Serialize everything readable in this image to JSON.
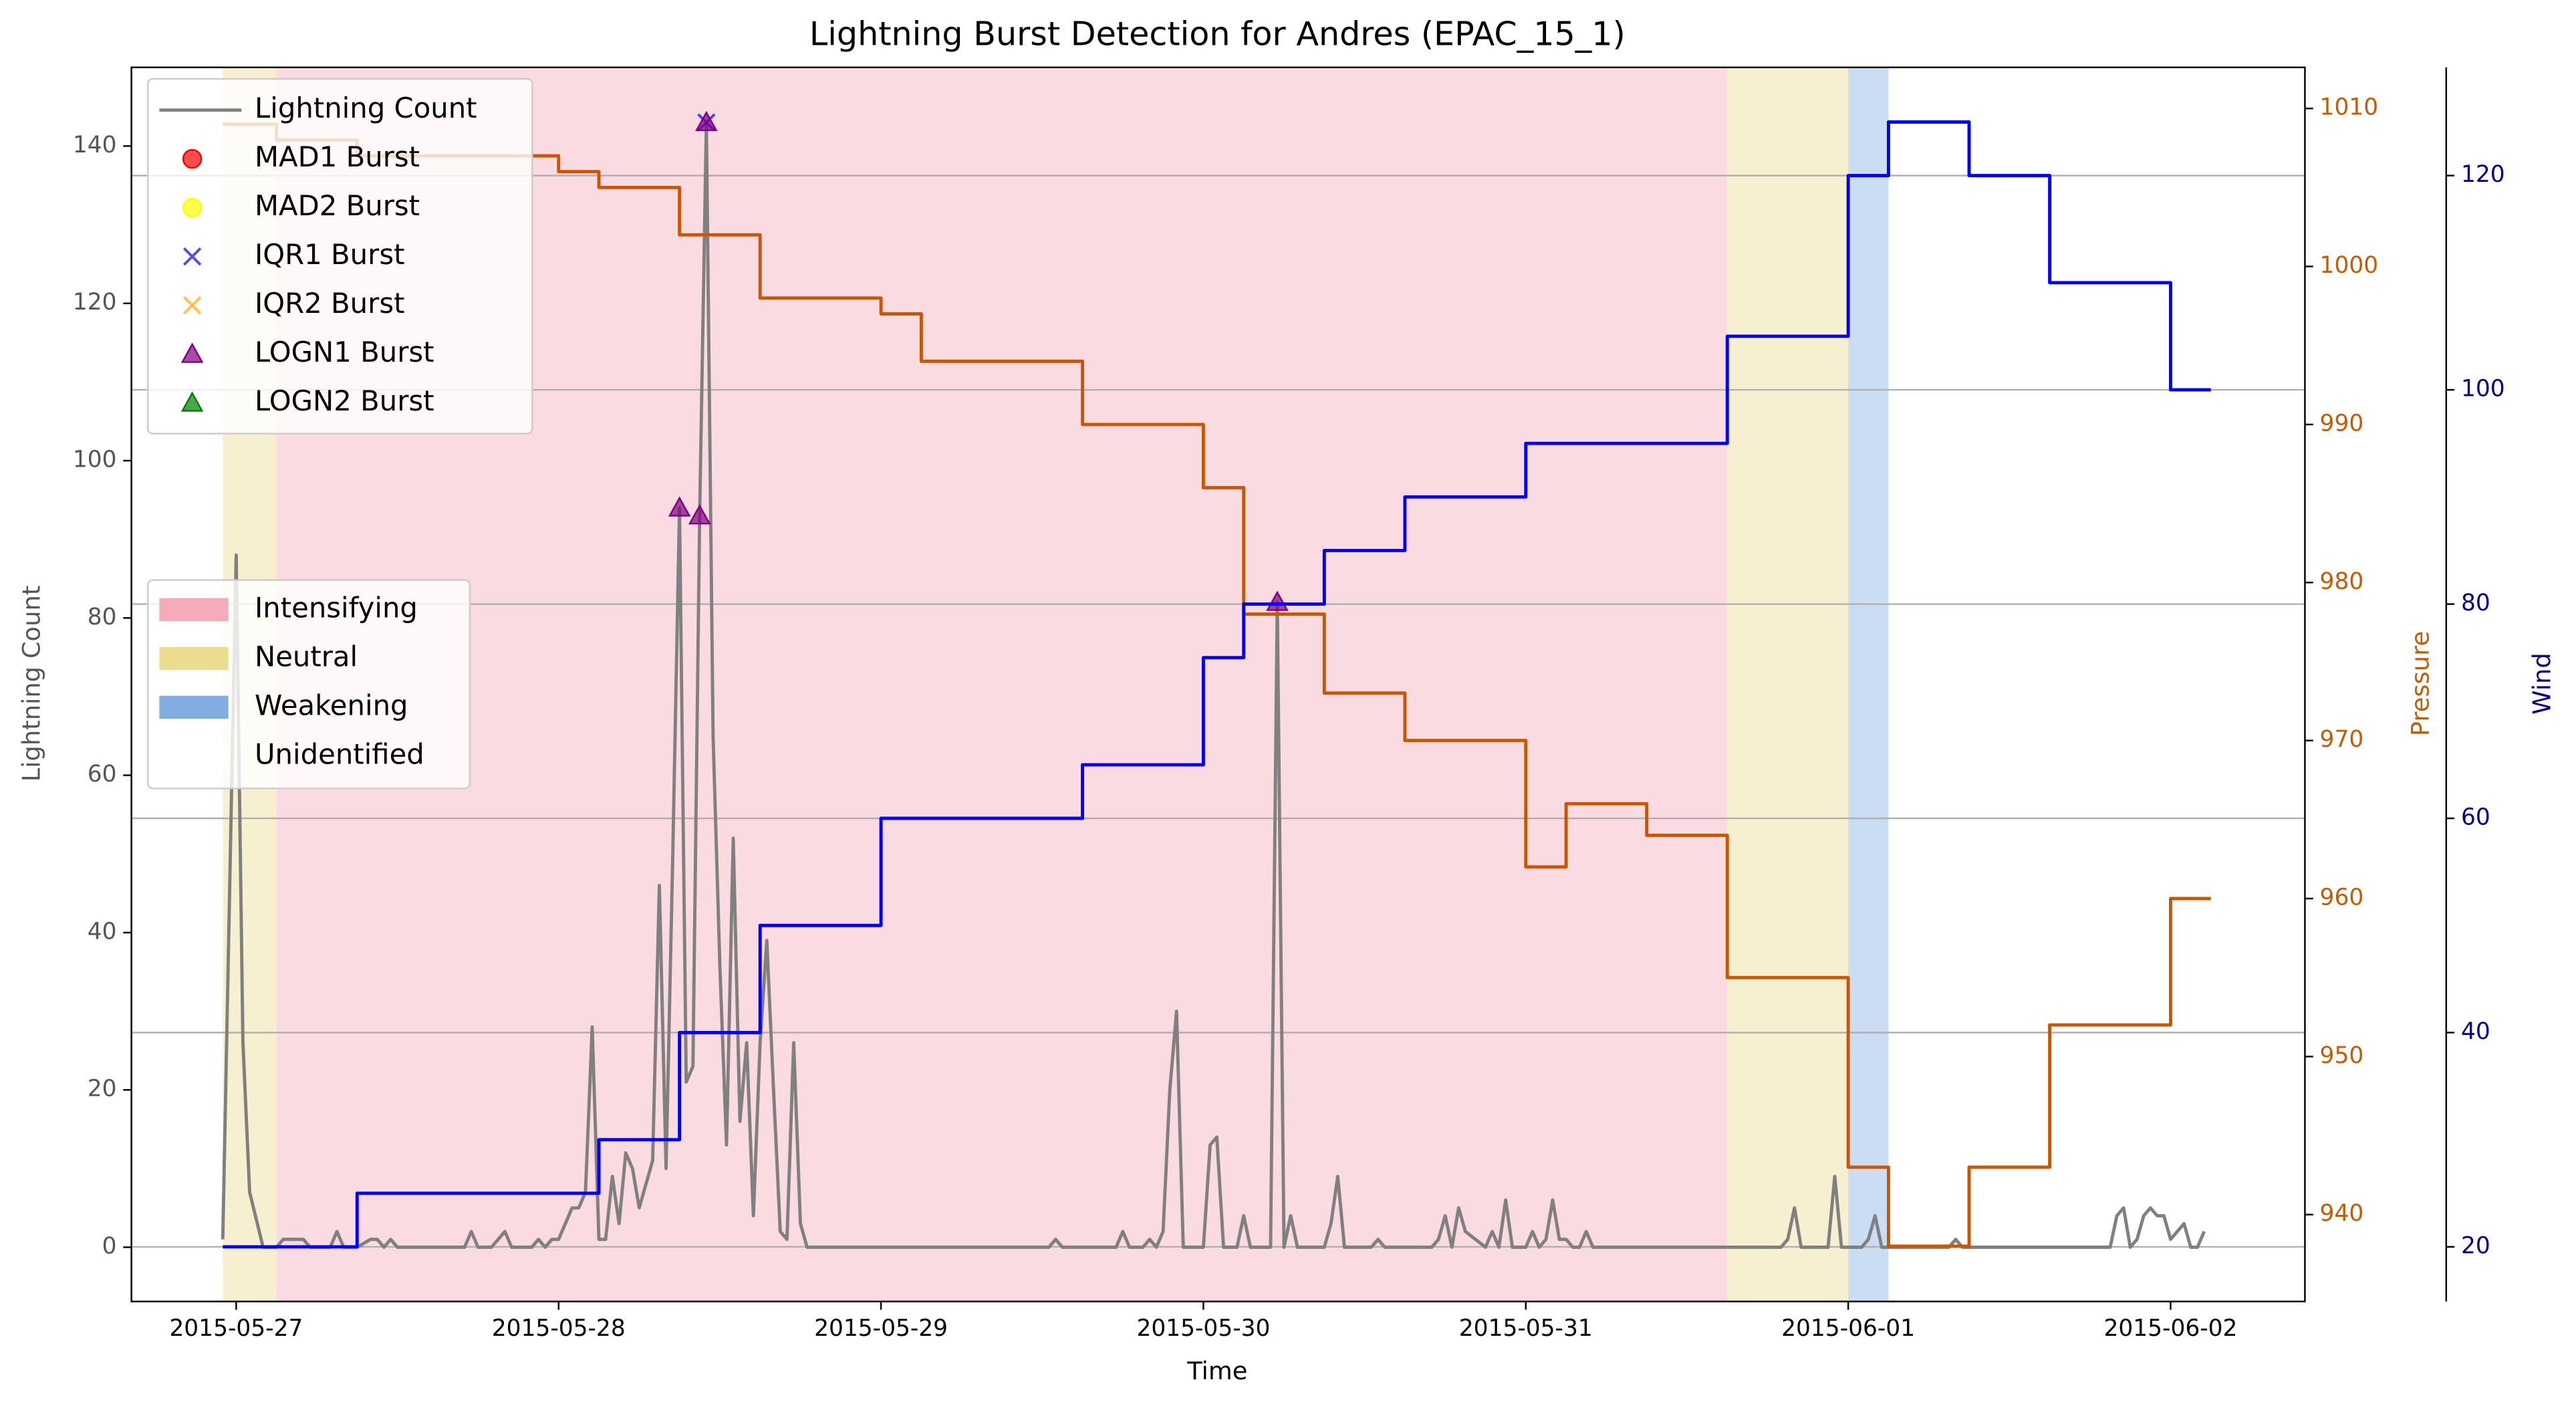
{
  "chart_data": {
    "type": "line",
    "title": "Lightning Burst Detection for Andres (EPAC_15_1)",
    "xlabel": "Time",
    "ylabel": "Lightning Count",
    "y2label": "Pressure",
    "y3label": "Wind",
    "xlim": [
      -7.8,
      154
    ],
    "xticks": [
      {
        "value": 0,
        "label": "2015-05-27"
      },
      {
        "value": 24,
        "label": "2015-05-28"
      },
      {
        "value": 48,
        "label": "2015-05-29"
      },
      {
        "value": 72,
        "label": "2015-05-30"
      },
      {
        "value": 96,
        "label": "2015-05-31"
      },
      {
        "value": 120,
        "label": "2015-06-01"
      },
      {
        "value": 144,
        "label": "2015-06-02"
      }
    ],
    "ylim": [
      -6.9,
      150
    ],
    "yticks": [
      0,
      20,
      40,
      60,
      80,
      100,
      120,
      140
    ],
    "y2lim": [
      934.5,
      1012.6
    ],
    "y2ticks": [
      940,
      950,
      960,
      970,
      980,
      990,
      1000,
      1010
    ],
    "y3lim": [
      14.9,
      130.1
    ],
    "y3ticks": [
      20,
      40,
      60,
      80,
      100,
      120
    ],
    "grid": "y3",
    "axis_colors": {
      "y": "#555555",
      "y2": "#c85a00",
      "y3": "#00008b"
    },
    "legend": "upper left",
    "phase_legend": "center left",
    "phases": [
      {
        "name": "Intensifying",
        "color": "#f4a6b6",
        "spans": [
          [
            3,
            111
          ]
        ]
      },
      {
        "name": "Neutral",
        "color": "#ecd98a",
        "spans": [
          [
            -1,
            3
          ],
          [
            111,
            120
          ]
        ]
      },
      {
        "name": "Weakening",
        "color": "#7aa9de",
        "spans": [
          [
            120,
            123
          ]
        ]
      },
      {
        "name": "Unidentified",
        "color": "#ffffff",
        "spans": []
      }
    ],
    "series": [
      {
        "name": "Lightning Count",
        "color": "#808080",
        "axis": "y",
        "x": [
          -1,
          0,
          0.5,
          1,
          2,
          3,
          3.5,
          5,
          5.5,
          7,
          7.5,
          8,
          9,
          10,
          10.5,
          11,
          11.5,
          12,
          17,
          17.5,
          18,
          19,
          20,
          20.5,
          22,
          22.5,
          23,
          23.5,
          24,
          25,
          25.5,
          26,
          26.5,
          27,
          27.5,
          28,
          28.5,
          29,
          29.5,
          30,
          31,
          31.5,
          32,
          32.5,
          33,
          33.5,
          34,
          34.5,
          35,
          35.5,
          36,
          36.5,
          37,
          37.5,
          38,
          38.5,
          39,
          39.5,
          40,
          40.5,
          41,
          41.5,
          42,
          42.5,
          60.5,
          61,
          61.5,
          65.5,
          66,
          66.5,
          67.5,
          68,
          68.5,
          69,
          69.5,
          70,
          70.5,
          72,
          72.5,
          73,
          73.5,
          74.5,
          75,
          75.5,
          77,
          77.5,
          78,
          78.5,
          79,
          81,
          81.5,
          82,
          82.5,
          84.5,
          85,
          85.5,
          89,
          89.5,
          90,
          90.5,
          91,
          91.5,
          93,
          93.5,
          94,
          94.5,
          95,
          96,
          96.5,
          97,
          97.5,
          98,
          98.5,
          99,
          99.5,
          100,
          100.5,
          101,
          115,
          115.5,
          116,
          116.5,
          118.5,
          119,
          119.5,
          121,
          121.5,
          122,
          122.5,
          127.5,
          128,
          128.5,
          139.5,
          140,
          140.5,
          141,
          141.5,
          142,
          142.5,
          143,
          143.5,
          144,
          144.5,
          145,
          145.5,
          146,
          146.5
        ],
        "values": [
          1,
          88,
          26,
          7,
          0,
          0,
          1,
          1,
          0,
          0,
          2,
          0,
          0,
          1,
          1,
          0,
          1,
          0,
          0,
          2,
          0,
          0,
          2,
          0,
          0,
          1,
          0,
          1,
          1,
          5,
          5,
          7,
          28,
          1,
          1,
          9,
          3,
          12,
          10,
          5,
          11,
          46,
          10,
          50,
          94,
          21,
          23,
          93,
          143,
          65,
          36,
          13,
          52,
          16,
          26,
          4,
          26,
          39,
          20,
          2,
          1,
          26,
          3,
          0,
          0,
          1,
          0,
          0,
          2,
          0,
          0,
          1,
          0,
          2,
          20,
          30,
          0,
          0,
          13,
          14,
          0,
          0,
          4,
          0,
          0,
          82,
          0,
          4,
          0,
          0,
          3,
          9,
          0,
          0,
          1,
          0,
          0,
          1,
          4,
          0,
          5,
          2,
          0,
          2,
          0,
          6,
          0,
          0,
          2,
          0,
          1,
          6,
          1,
          1,
          0,
          0,
          2,
          0,
          0,
          1,
          5,
          0,
          0,
          9,
          0,
          0,
          1,
          4,
          0,
          0,
          1,
          0,
          0,
          4,
          5,
          0,
          1,
          4,
          5,
          4,
          4,
          1,
          2,
          3,
          0,
          0,
          2
        ]
      },
      {
        "name": "MAD1 Burst",
        "type": "scatter",
        "marker": "o",
        "color": "#ff0000",
        "axis": "y",
        "x": [],
        "values": []
      },
      {
        "name": "MAD2 Burst",
        "type": "scatter",
        "marker": "o",
        "color": "#ffff00",
        "axis": "y",
        "x": [],
        "values": []
      },
      {
        "name": "IQR1 Burst",
        "type": "scatter",
        "marker": "x",
        "color": "#0000ff",
        "axis": "y",
        "x": [
          35
        ],
        "values": [
          143
        ]
      },
      {
        "name": "IQR2 Burst",
        "type": "scatter",
        "marker": "x",
        "color": "#ffa500",
        "axis": "y",
        "x": [],
        "values": []
      },
      {
        "name": "LOGN1 Burst",
        "type": "scatter",
        "marker": "^",
        "color": "#800080",
        "axis": "y",
        "x": [
          33,
          34.5,
          35,
          77.5
        ],
        "values": [
          94,
          93,
          143,
          82
        ]
      },
      {
        "name": "LOGN2 Burst",
        "type": "scatter",
        "marker": "^",
        "color": "#008000",
        "axis": "y",
        "x": [],
        "values": []
      },
      {
        "color": "#cc5500",
        "axis": "y2",
        "drawstyle": "steps-post",
        "x": [
          -1,
          3,
          9,
          24,
          27,
          33,
          39,
          48,
          51,
          63,
          72,
          75,
          81,
          87,
          96,
          99,
          105,
          111,
          120,
          123,
          129,
          135,
          144,
          147
        ],
        "values": [
          1009,
          1008,
          1007,
          1006,
          1005,
          1002,
          998,
          997,
          994,
          990,
          986,
          978,
          973,
          970,
          962,
          966,
          964,
          955,
          943,
          938,
          943,
          952,
          960,
          960
        ]
      },
      {
        "color": "#0000ff",
        "axis": "y3",
        "drawstyle": "steps-post",
        "x": [
          -1,
          9,
          27,
          33,
          39,
          48,
          63,
          72,
          75,
          81,
          87,
          96,
          111,
          120,
          123,
          129,
          135,
          144,
          147
        ],
        "values": [
          20,
          25,
          30,
          40,
          50,
          60,
          65,
          75,
          80,
          85,
          90,
          95,
          105,
          120,
          125,
          120,
          110,
          100,
          100
        ]
      }
    ]
  }
}
